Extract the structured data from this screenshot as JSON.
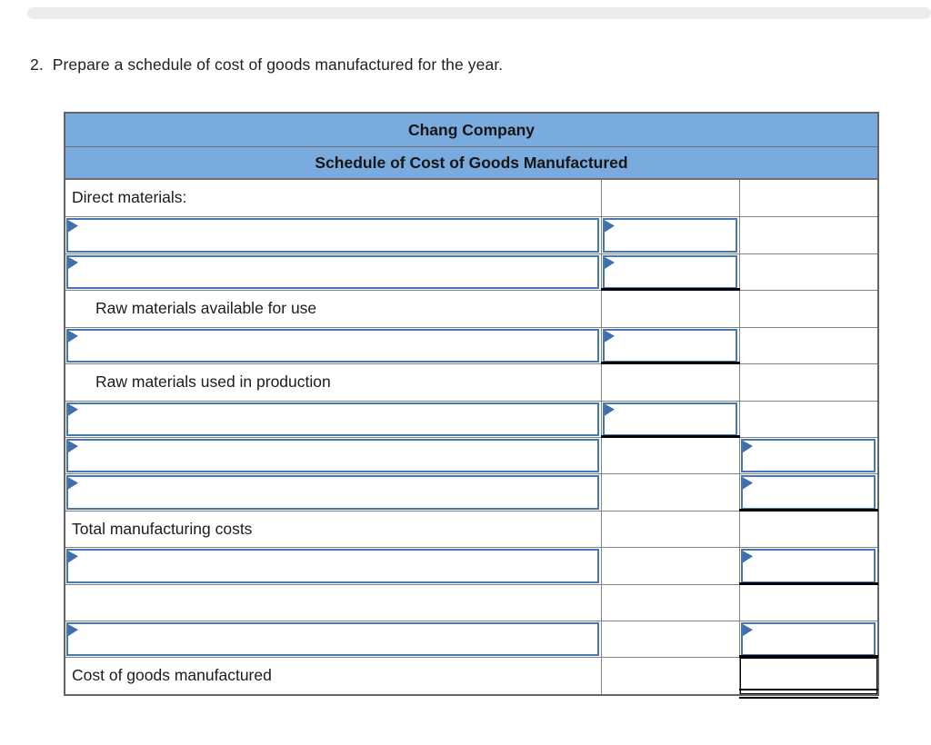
{
  "page": {
    "instruction": "2.  Prepare a schedule of cost of goods manufactured for the year."
  },
  "table": {
    "title": "Chang Company",
    "subtitle": "Schedule of Cost of Goods Manufactured",
    "rows": [
      {
        "type": "label",
        "text": "Direct materials:",
        "indent": false
      },
      {
        "type": "inputs",
        "input_col": 2,
        "underline": false
      },
      {
        "type": "inputs",
        "input_col": 2,
        "underline": true
      },
      {
        "type": "label",
        "text": "Raw materials available for use",
        "indent": true
      },
      {
        "type": "inputs",
        "input_col": 2,
        "underline": true
      },
      {
        "type": "label",
        "text": "Raw materials used in production",
        "indent": true
      },
      {
        "type": "inputs",
        "input_col": 2,
        "underline": true
      },
      {
        "type": "inputs",
        "input_col": 3,
        "underline": false
      },
      {
        "type": "inputs",
        "input_col": 3,
        "underline": true
      },
      {
        "type": "label",
        "text": "Total manufacturing costs",
        "indent": false
      },
      {
        "type": "inputs",
        "input_col": 3,
        "underline": true
      },
      {
        "type": "empty"
      },
      {
        "type": "inputs",
        "input_col": 3,
        "underline": true
      },
      {
        "type": "label",
        "text": "Cost of goods manufactured",
        "indent": false,
        "total_col3": true
      }
    ],
    "colors": {
      "header_fill": "#7aabdf",
      "grid_line": "#828282",
      "outer_border": "#646464",
      "input_border": "#4678b5",
      "flag": "#3f6fad",
      "underline": "#000000",
      "text": "#1c1c1c"
    }
  }
}
